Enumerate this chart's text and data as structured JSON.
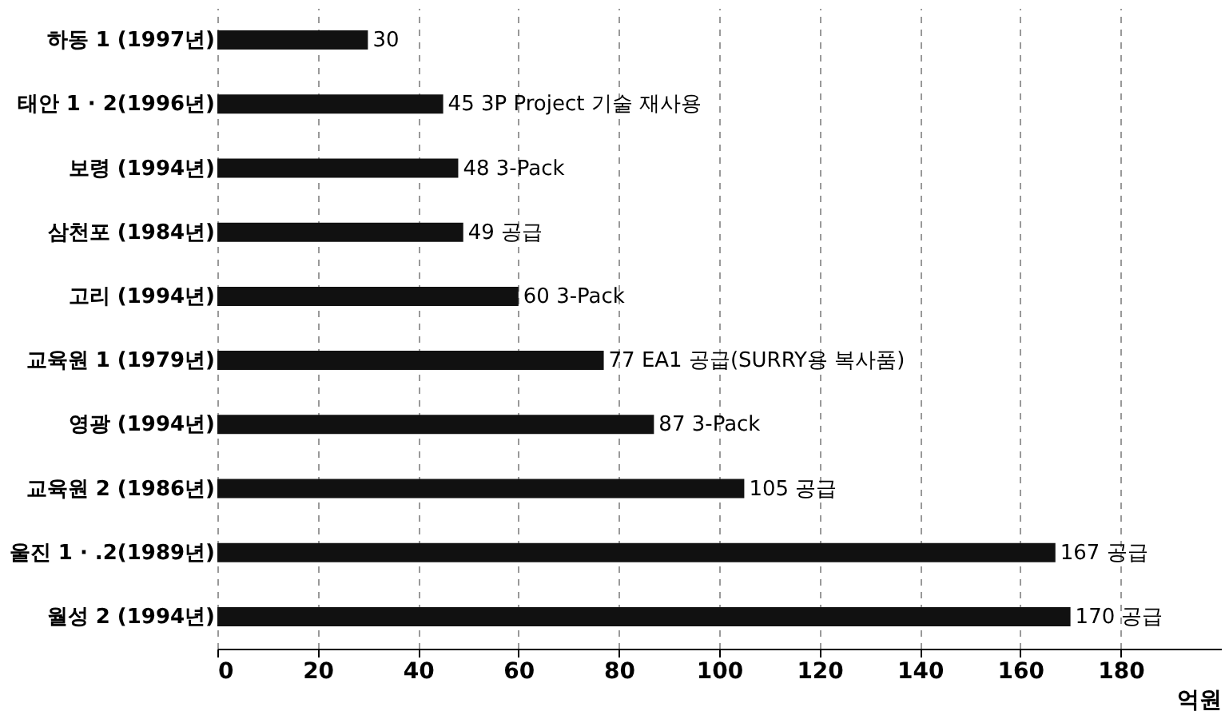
{
  "chart_data": {
    "type": "bar",
    "orientation": "horizontal",
    "categories": [
      "하동 1 (1997년)",
      "태안 1 · 2(1996년)",
      "보령 (1994년)",
      "삼천포 (1984년)",
      "고리 (1994년)",
      "교육원 1 (1979년)",
      "영광 (1994년)",
      "교육원 2 (1986년)",
      "울진 1 · .2(1989년)",
      "월성 2 (1994년)"
    ],
    "values": [
      30,
      45,
      48,
      49,
      60,
      77,
      87,
      105,
      167,
      170
    ],
    "value_labels": [
      "30",
      "45 3P Project 기술 재사용",
      "48 3-Pack",
      "49 공급",
      "60 3-Pack",
      "77 EA1 공급(SURRY용 복사품)",
      "87 3-Pack",
      "105 공급",
      "167 공급",
      "170 공급"
    ],
    "color": "#111111",
    "xlabel": "억원",
    "xlim": [
      0,
      200
    ],
    "xticks": [
      0,
      20,
      40,
      60,
      80,
      100,
      120,
      140,
      160,
      180
    ],
    "grid": "x"
  }
}
